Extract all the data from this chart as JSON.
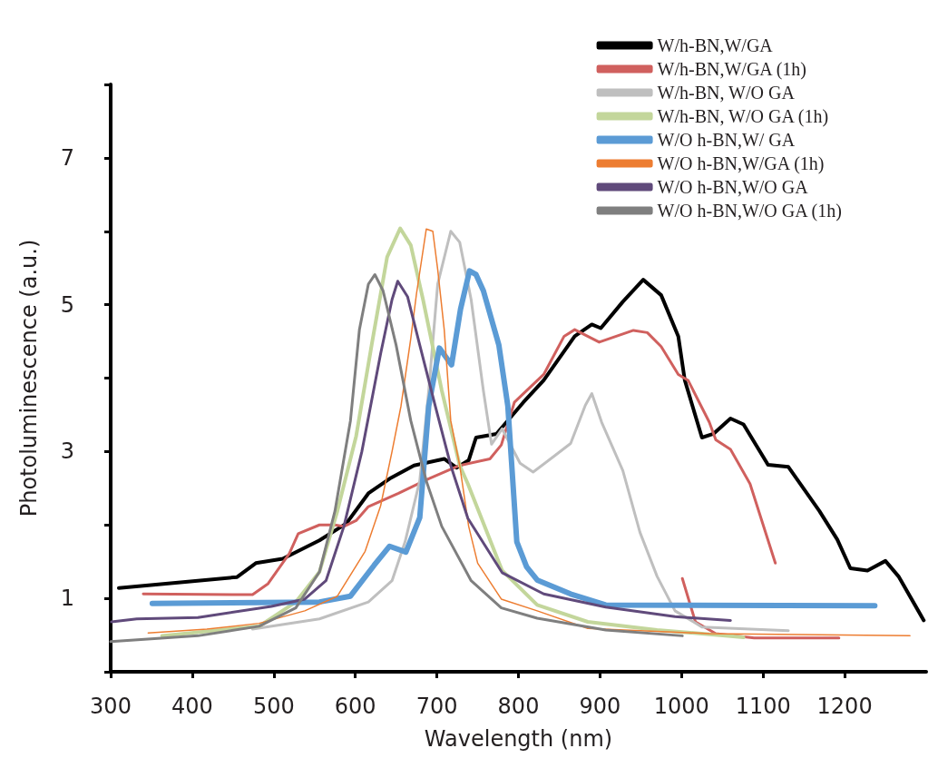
{
  "chart_data": {
    "type": "line",
    "xlabel": "Wavelength (nm)",
    "ylabel": "Photoluminescence (a.u.)",
    "xlim": [
      300,
      1300
    ],
    "xticks": [
      300,
      400,
      500,
      600,
      700,
      800,
      900,
      1000,
      1100,
      1200
    ],
    "ylim": [
      0,
      8
    ],
    "yticks": [
      {
        "value": 0,
        "label": null
      },
      1,
      {
        "value": 2,
        "label": null
      },
      3,
      {
        "value": 4,
        "label": null
      },
      5,
      {
        "value": 6,
        "label": null
      },
      7,
      {
        "value": 8,
        "label": null
      }
    ],
    "grid": false,
    "legend": "top right",
    "marker": "none",
    "line_style": "solid",
    "series": [
      {
        "name": "W/h-BN,W/GA",
        "color": "#000000",
        "x": [
          310,
          455,
          478,
          511,
          556,
          589,
          616,
          642,
          672,
          709,
          724,
          739,
          748,
          773,
          806,
          831,
          869,
          890,
          901,
          928,
          953,
          975,
          996,
          1004,
          1025,
          1039,
          1060,
          1076,
          1106,
          1131,
          1169,
          1191,
          1207,
          1228,
          1250,
          1266,
          1297
        ],
        "values": [
          1.14,
          1.29,
          1.48,
          1.54,
          1.79,
          2.02,
          2.43,
          2.63,
          2.81,
          2.9,
          2.78,
          2.88,
          3.19,
          3.24,
          3.67,
          3.97,
          4.57,
          4.73,
          4.68,
          5.04,
          5.34,
          5.13,
          4.57,
          3.97,
          3.19,
          3.24,
          3.45,
          3.37,
          2.82,
          2.79,
          2.19,
          1.8,
          1.41,
          1.38,
          1.51,
          1.3,
          0.7
        ]
      },
      {
        "name": "W/h-BN,W/GA (1h)",
        "color": "#d0605e",
        "x": [
          340,
          474,
          493,
          519,
          530,
          556,
          575,
          586,
          601,
          616,
          653,
          690,
          728,
          765,
          779,
          795,
          831,
          856,
          869,
          899,
          941,
          958,
          975,
          996,
          1008,
          1034,
          1042,
          1060,
          1084,
          1115,
          null,
          1001,
          1017,
          1042,
          1089,
          1193
        ],
        "values": [
          1.06,
          1.05,
          1.2,
          1.61,
          1.88,
          2.0,
          2.0,
          1.98,
          2.06,
          2.25,
          2.43,
          2.63,
          2.81,
          2.9,
          3.09,
          3.67,
          4.05,
          4.57,
          4.66,
          4.49,
          4.65,
          4.62,
          4.43,
          4.05,
          3.97,
          3.4,
          3.16,
          3.03,
          2.56,
          1.48,
          null,
          1.27,
          0.68,
          0.52,
          0.46,
          0.46
        ]
      },
      {
        "name": "W/h-BN, W/O GA",
        "color": "#bfbfbf",
        "x": [
          474,
          556,
          616,
          645,
          661,
          679,
          690,
          701,
          717,
          728,
          742,
          757,
          767,
          780,
          802,
          818,
          843,
          864,
          882,
          890,
          902,
          928,
          949,
          970,
          992,
          1025,
          1131
        ],
        "values": [
          0.58,
          0.72,
          0.95,
          1.24,
          1.77,
          2.6,
          3.83,
          5.28,
          6.0,
          5.85,
          5.07,
          3.83,
          3.1,
          3.31,
          2.84,
          2.72,
          2.93,
          3.11,
          3.63,
          3.79,
          3.4,
          2.74,
          1.9,
          1.3,
          0.83,
          0.61,
          0.56
        ]
      },
      {
        "name": "W/h-BN, W/O GA (1h)",
        "color": "#c3d69b",
        "x": [
          363,
          482,
          527,
          556,
          578,
          601,
          620,
          639,
          655,
          668,
          683,
          706,
          728,
          738,
          780,
          823,
          885,
          970,
          1076
        ],
        "values": [
          0.49,
          0.62,
          0.95,
          1.36,
          2.19,
          3.21,
          4.45,
          5.65,
          6.04,
          5.81,
          5.07,
          3.83,
          2.81,
          2.56,
          1.38,
          0.91,
          0.68,
          0.57,
          0.47
        ]
      },
      {
        "name": "W/O h-BN,W/ GA",
        "color": "#5b9bd5",
        "x": [
          351,
          556,
          594,
          623,
          642,
          662,
          679,
          690,
          703,
          718,
          729,
          740,
          748,
          757,
          776,
          787,
          798,
          810,
          823,
          864,
          907,
          1237
        ],
        "values": [
          0.93,
          0.95,
          1.03,
          1.45,
          1.71,
          1.63,
          2.1,
          3.62,
          4.41,
          4.18,
          4.94,
          5.46,
          5.41,
          5.19,
          4.45,
          3.62,
          1.77,
          1.43,
          1.25,
          1.06,
          0.91,
          0.9
        ]
      },
      {
        "name": "W/O h-BN,W/GA (1h)",
        "color": "#ed7d31",
        "x": [
          346,
          418,
          482,
          538,
          578,
          612,
          631,
          645,
          656,
          668,
          675,
          687,
          695,
          701,
          709,
          717,
          728,
          739,
          750,
          779,
          823,
          885,
          1034,
          1280
        ],
        "values": [
          0.53,
          0.58,
          0.66,
          0.83,
          1.03,
          1.64,
          2.26,
          3.0,
          3.62,
          4.54,
          5.15,
          6.03,
          6.0,
          5.48,
          4.66,
          3.42,
          2.81,
          1.98,
          1.48,
          0.99,
          0.83,
          0.59,
          0.52,
          0.49
        ]
      },
      {
        "name": "W/O h-BN,W/O GA",
        "color": "#604a7b",
        "x": [
          301,
          332,
          407,
          497,
          538,
          564,
          586,
          608,
          631,
          645,
          652,
          664,
          679,
          698,
          717,
          738,
          780,
          831,
          907,
          992,
          1060
        ],
        "values": [
          0.68,
          0.72,
          0.74,
          0.89,
          0.99,
          1.24,
          1.98,
          3.0,
          4.33,
          5.07,
          5.32,
          5.11,
          4.45,
          3.62,
          2.81,
          2.09,
          1.35,
          1.06,
          0.88,
          0.75,
          0.7
        ]
      },
      {
        "name": "W/O h-BN,W/O GA (1h)",
        "color": "#7f7f7f",
        "x": [
          300,
          407,
          482,
          527,
          556,
          575,
          594,
          605,
          616,
          624,
          634,
          650,
          668,
          687,
          706,
          742,
          779,
          823,
          907,
          1001
        ],
        "values": [
          0.41,
          0.49,
          0.62,
          0.87,
          1.36,
          2.19,
          3.42,
          4.66,
          5.28,
          5.41,
          5.19,
          4.45,
          3.42,
          2.6,
          1.98,
          1.24,
          0.87,
          0.73,
          0.57,
          0.49
        ]
      }
    ]
  }
}
